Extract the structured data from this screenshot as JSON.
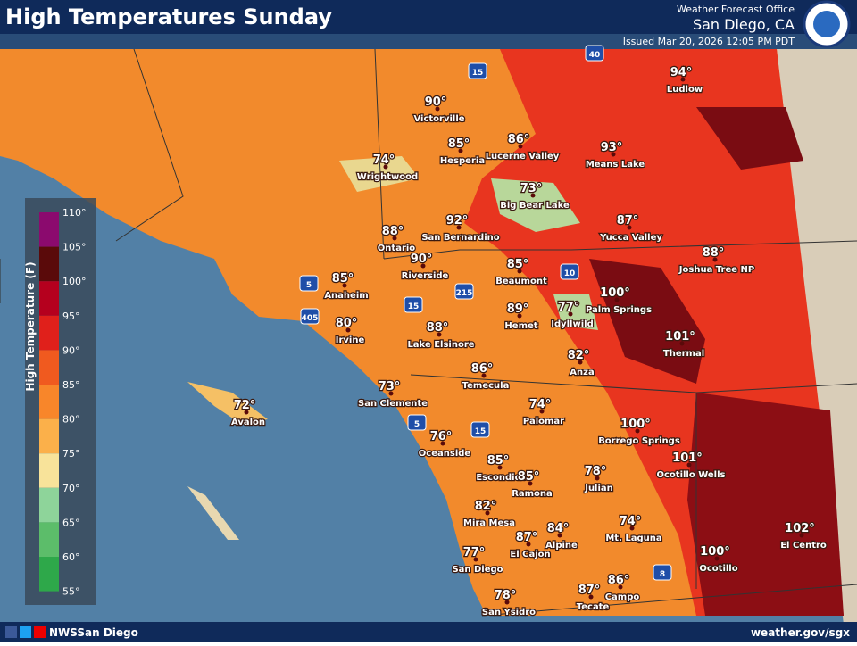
{
  "header": {
    "title": "High Temperatures Sunday",
    "office": "Weather Forecast Office",
    "location": "San Diego, CA",
    "issued": "Issued Mar 20, 2026 12:05 PM PDT"
  },
  "legend": {
    "title": "High Temperature (F)",
    "ticks": [
      "110°",
      "105°",
      "100°",
      "95°",
      "90°",
      "85°",
      "80°",
      "75°",
      "70°",
      "65°",
      "60°",
      "55°"
    ],
    "colors": [
      "#8b0a6e",
      "#5a0a0a",
      "#b5001e",
      "#e0201b",
      "#f05a1f",
      "#f8862a",
      "#fbb04a",
      "#f8e39a",
      "#8ed49a",
      "#5cbd6a",
      "#2ea84a"
    ]
  },
  "cities": [
    {
      "name": "Ludlow",
      "temp": "94°"
    },
    {
      "name": "Victorville",
      "temp": "90°"
    },
    {
      "name": "Hesperia",
      "temp": "85°"
    },
    {
      "name": "Lucerne Valley",
      "temp": "86°"
    },
    {
      "name": "Means Lake",
      "temp": "93°"
    },
    {
      "name": "Wrightwood",
      "temp": "74°"
    },
    {
      "name": "Big Bear Lake",
      "temp": "73°"
    },
    {
      "name": "Yucca Valley",
      "temp": "87°"
    },
    {
      "name": "Joshua Tree NP",
      "temp": "88°"
    },
    {
      "name": "Ontario",
      "temp": "88°"
    },
    {
      "name": "San Bernardino",
      "temp": "92°"
    },
    {
      "name": "Riverside",
      "temp": "90°"
    },
    {
      "name": "Beaumont",
      "temp": "85°"
    },
    {
      "name": "Anaheim",
      "temp": "85°"
    },
    {
      "name": "Palm Springs",
      "temp": "100°"
    },
    {
      "name": "Irvine",
      "temp": "80°"
    },
    {
      "name": "Hemet",
      "temp": "89°"
    },
    {
      "name": "Idyllwild",
      "temp": "77°"
    },
    {
      "name": "Lake Elsinore",
      "temp": "88°"
    },
    {
      "name": "Thermal",
      "temp": "101°"
    },
    {
      "name": "Anza",
      "temp": "82°"
    },
    {
      "name": "Temecula",
      "temp": "86°"
    },
    {
      "name": "San Clemente",
      "temp": "73°"
    },
    {
      "name": "Avalon",
      "temp": "72°"
    },
    {
      "name": "Palomar",
      "temp": "74°"
    },
    {
      "name": "Borrego Springs",
      "temp": "100°"
    },
    {
      "name": "Oceanside",
      "temp": "76°"
    },
    {
      "name": "Ocotillo Wells",
      "temp": "101°"
    },
    {
      "name": "Escondido",
      "temp": "85°"
    },
    {
      "name": "Ramona",
      "temp": "85°"
    },
    {
      "name": "Julian",
      "temp": "78°"
    },
    {
      "name": "Mira Mesa",
      "temp": "82°"
    },
    {
      "name": "Alpine",
      "temp": "84°"
    },
    {
      "name": "El Cajon",
      "temp": "87°"
    },
    {
      "name": "Mt. Laguna",
      "temp": "74°"
    },
    {
      "name": "El Centro",
      "temp": "102°"
    },
    {
      "name": "Ocotillo",
      "temp": "100°"
    },
    {
      "name": "San Diego",
      "temp": "77°"
    },
    {
      "name": "Campo",
      "temp": "86°"
    },
    {
      "name": "Tecate",
      "temp": "87°"
    },
    {
      "name": "San Ysidro",
      "temp": "78°"
    }
  ],
  "highways": [
    "15",
    "40",
    "10",
    "5",
    "405",
    "15",
    "215",
    "5",
    "15",
    "8"
  ],
  "footer": {
    "social": "NWSSan Diego",
    "url": "weather.gov/sgx"
  }
}
